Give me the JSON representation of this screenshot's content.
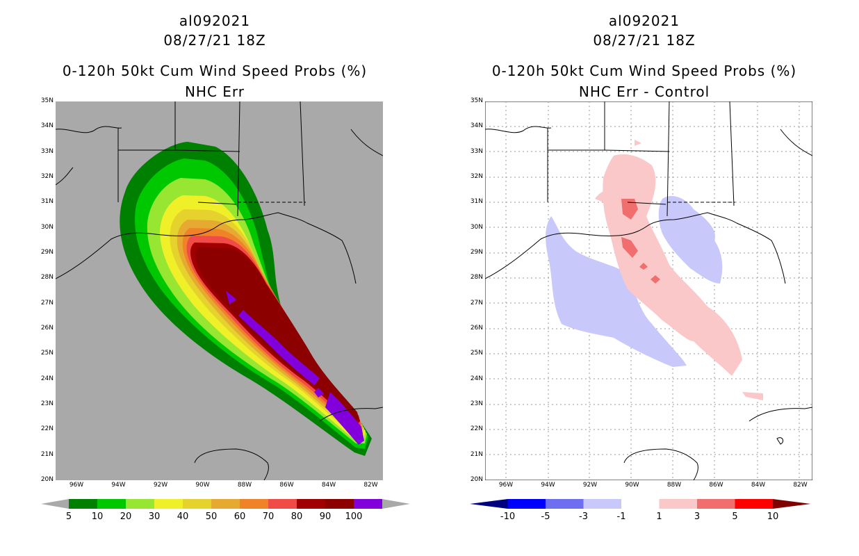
{
  "left": {
    "title_id": "al092021",
    "title_time": "08/27/21 18Z",
    "title_product": "0-120h 50kt Cum Wind Speed Probs (%)",
    "subtitle": "NHC Err",
    "colorbar_labels": [
      "5",
      "10",
      "20",
      "30",
      "40",
      "50",
      "60",
      "70",
      "80",
      "90",
      "100"
    ],
    "colorbar_colors": [
      "#008000",
      "#00c800",
      "#96e632",
      "#f0f028",
      "#e6d22d",
      "#e6aa32",
      "#f08228",
      "#f04b46",
      "#a00000",
      "#8c0000",
      "#8200dc"
    ]
  },
  "right": {
    "title_id": "al092021",
    "title_time": "08/27/21 18Z",
    "title_product": "0-120h 50kt Cum Wind Speed Probs (%)",
    "subtitle": "NHC Err - Control",
    "colorbar_labels": [
      "-10",
      "-5",
      "-3",
      "-1",
      "1",
      "3",
      "5",
      "10"
    ],
    "colorbar_colors": [
      "#000080",
      "#0000ff",
      "#6e6ef0",
      "#c8c8fa",
      "#ffffff",
      "#fac8c8",
      "#f06e6e",
      "#ff0000",
      "#800000"
    ]
  },
  "axes": {
    "lat_labels": [
      "35N",
      "34N",
      "33N",
      "32N",
      "31N",
      "30N",
      "29N",
      "28N",
      "27N",
      "26N",
      "25N",
      "24N",
      "23N",
      "22N",
      "21N",
      "20N"
    ],
    "lon_labels": [
      "96W",
      "94W",
      "92W",
      "90W",
      "88W",
      "86W",
      "84W",
      "82W"
    ]
  },
  "colors": {
    "land_bg": "#a9a9a9",
    "pos_light": "#fac8c8",
    "pos_mid": "#f06e6e",
    "neg_light": "#c8c8fa"
  }
}
